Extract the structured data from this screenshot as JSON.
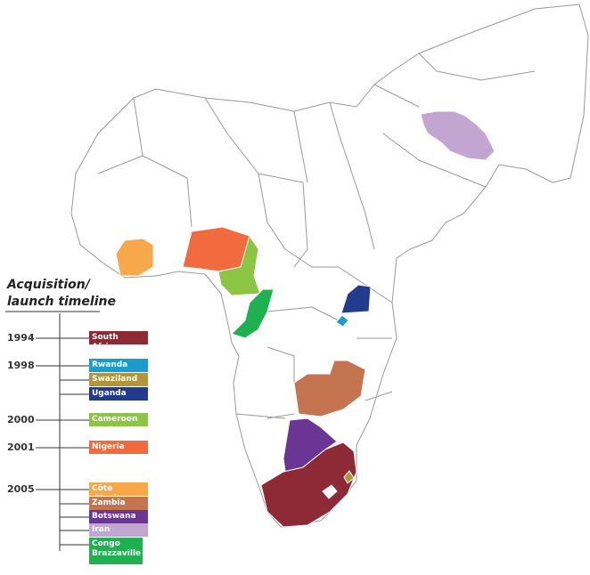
{
  "title_lines": [
    "Acquisition/",
    "launch timeline"
  ],
  "timeline": [
    {
      "year": "1994",
      "countries": [
        {
          "name": "South Africa",
          "color": "#8e2a35"
        }
      ]
    },
    {
      "year": "1998",
      "countries": [
        {
          "name": "Rwanda",
          "color": "#1a9ccc"
        },
        {
          "name": "Swaziland",
          "color": "#b0953a"
        },
        {
          "name": "Uganda",
          "color": "#223b8c"
        }
      ]
    },
    {
      "year": "2000",
      "countries": [
        {
          "name": "Cameroon",
          "color": "#8cc443"
        }
      ]
    },
    {
      "year": "2001",
      "countries": [
        {
          "name": "Nigeria",
          "color": "#f26b3f"
        }
      ]
    },
    {
      "year": "2005",
      "countries": [
        {
          "name": "Côte d'Ivoire",
          "color": "#f7a84a"
        },
        {
          "name": "Zambia",
          "color": "#c47550"
        },
        {
          "name": "Botswana",
          "color": "#6b3593"
        },
        {
          "name": "Iran",
          "color": "#c3a5d2"
        },
        {
          "name": "Congo Brazzaville",
          "color": "#1fb04f"
        }
      ]
    }
  ]
}
